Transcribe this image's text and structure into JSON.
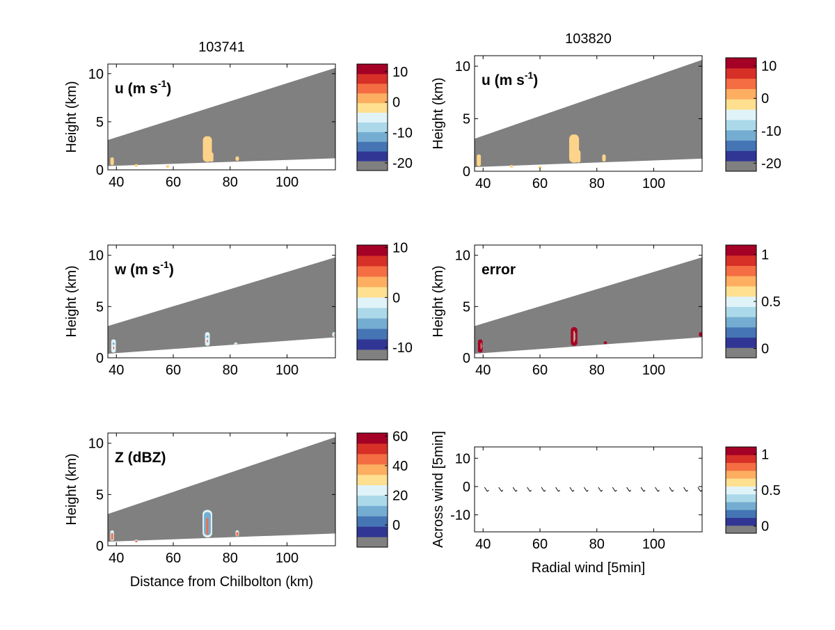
{
  "colorbar_palette": [
    "#808080",
    "#313695",
    "#4575b4",
    "#74add1",
    "#abd9e9",
    "#e0f3f8",
    "#fee090",
    "#fdae61",
    "#f46d43",
    "#d73027",
    "#a50026"
  ],
  "shape_colors": {
    "fill": "#808080",
    "blob": "#fdd389",
    "axes": "#000000",
    "background": "#ffffff"
  },
  "chart_data": [
    {
      "id": "u-103741",
      "type": "heatmap",
      "title": "103741",
      "panel_label": "u (m s",
      "panel_label_sup": "-1",
      "panel_label_end": ")",
      "ylabel": "Height (km)",
      "xlabel": "",
      "xlim": [
        37,
        117
      ],
      "ylim": [
        0,
        11
      ],
      "xticks": [
        "40",
        "60",
        "80",
        "100"
      ],
      "yticks": [
        "0",
        "5",
        "10"
      ],
      "colorbar_ticks": [
        "10",
        "0",
        "-10",
        "-20"
      ],
      "colorbar_tick_values": [
        10,
        0,
        -10,
        -20
      ],
      "colorbar_range": [
        -22.5,
        12.5
      ],
      "beam": {
        "x0": 37,
        "x1": 117,
        "top0": 3.1,
        "top1": 10.6,
        "bot0": 0.4,
        "bot1": 1.2
      },
      "echoes": [
        [
          38.5,
          1.3
        ],
        [
          72,
          3.5
        ],
        [
          73.5,
          1.8
        ],
        [
          82.5,
          1.4
        ],
        [
          47,
          0.6
        ],
        [
          58,
          0.5
        ]
      ]
    },
    {
      "id": "u-103820",
      "type": "heatmap",
      "title": "103820",
      "panel_label": "u (m s",
      "panel_label_sup": "-1",
      "panel_label_end": ")",
      "ylabel": "Height (km)",
      "xlabel": "",
      "xlim": [
        37,
        117
      ],
      "ylim": [
        0,
        11
      ],
      "xticks": [
        "40",
        "60",
        "80",
        "100"
      ],
      "yticks": [
        "0",
        "5",
        "10"
      ],
      "colorbar_ticks": [
        "10",
        "0",
        "-10",
        "-20"
      ],
      "colorbar_tick_values": [
        10,
        0,
        -10,
        -20
      ],
      "colorbar_range": [
        -22.5,
        12.5
      ],
      "beam": {
        "x0": 37,
        "x1": 117,
        "top0": 3.1,
        "top1": 10.6,
        "bot0": 0.4,
        "bot1": 1.2
      },
      "echoes": [
        [
          38.5,
          1.6
        ],
        [
          72,
          3.5
        ],
        [
          73.5,
          2.0
        ],
        [
          82.5,
          1.6
        ],
        [
          50,
          0.6
        ],
        [
          60,
          0.5
        ]
      ]
    },
    {
      "id": "w-103741",
      "type": "heatmap",
      "title": "",
      "panel_label": "w (m s",
      "panel_label_sup": "-1",
      "panel_label_end": ")",
      "ylabel": "Height (km)",
      "xlabel": "",
      "xlim": [
        37,
        117
      ],
      "ylim": [
        0,
        11
      ],
      "xticks": [
        "40",
        "60",
        "80",
        "100"
      ],
      "yticks": [
        "0",
        "5",
        "10"
      ],
      "colorbar_ticks": [
        "10",
        "0",
        "-10"
      ],
      "colorbar_tick_values": [
        10,
        0,
        -10
      ],
      "colorbar_range": [
        -12.5,
        10.5
      ],
      "beam": {
        "x0": 37,
        "x1": 117,
        "top0": 3.1,
        "top1": 9.8,
        "bot0": 0.4,
        "bot1": 2.0
      },
      "echoes": [
        [
          39,
          1.8
        ],
        [
          72,
          2.5
        ],
        [
          82,
          1.5
        ],
        [
          116.5,
          2.5
        ]
      ]
    },
    {
      "id": "error-103820",
      "type": "heatmap",
      "title": "",
      "panel_label": "error",
      "panel_label_sup": "",
      "panel_label_end": "",
      "ylabel": "Height (km)",
      "xlabel": "",
      "xlim": [
        37,
        117
      ],
      "ylim": [
        0,
        11
      ],
      "xticks": [
        "40",
        "60",
        "80",
        "100"
      ],
      "yticks": [
        "0",
        "5",
        "10"
      ],
      "colorbar_ticks": [
        "1",
        "0.5",
        "0"
      ],
      "colorbar_tick_values": [
        1,
        0.5,
        0
      ],
      "colorbar_range": [
        -0.1,
        1.1
      ],
      "beam": {
        "x0": 37,
        "x1": 117,
        "top0": 3.1,
        "top1": 9.8,
        "bot0": 0.4,
        "bot1": 2.0
      },
      "echoes": [
        [
          39,
          1.8
        ],
        [
          72,
          3.0
        ],
        [
          83,
          1.6
        ],
        [
          116.5,
          2.5
        ]
      ]
    },
    {
      "id": "Z-103741",
      "type": "heatmap",
      "title": "",
      "panel_label": "Z (dBZ)",
      "panel_label_sup": "",
      "panel_label_end": "",
      "ylabel": "Height (km)",
      "xlabel": "Distance from Chilbolton (km)",
      "xlim": [
        37,
        117
      ],
      "ylim": [
        0,
        11
      ],
      "xticks": [
        "40",
        "60",
        "80",
        "100"
      ],
      "yticks": [
        "0",
        "5",
        "10"
      ],
      "colorbar_ticks": [
        "60",
        "40",
        "20",
        "0"
      ],
      "colorbar_tick_values": [
        60,
        40,
        20,
        0
      ],
      "colorbar_range": [
        -15,
        62
      ],
      "beam": {
        "x0": 37,
        "x1": 117,
        "top0": 3.1,
        "top1": 10.6,
        "bot0": 0.4,
        "bot1": 1.2
      },
      "echoes": [
        [
          38.5,
          1.5
        ],
        [
          72,
          3.5
        ],
        [
          82.5,
          1.5
        ],
        [
          47,
          0.6
        ]
      ]
    },
    {
      "id": "wind-vectors",
      "type": "scatter",
      "title": "",
      "panel_label": "",
      "panel_label_sup": "",
      "panel_label_end": "",
      "ylabel": "Across wind [5min]",
      "xlabel": "Radial wind [5min]",
      "xlim": [
        37,
        117
      ],
      "ylim": [
        -16,
        14
      ],
      "xticks": [
        "40",
        "60",
        "80",
        "100"
      ],
      "yticks": [
        "10",
        "0",
        "-10"
      ],
      "ytick_values": [
        10,
        0,
        -10
      ],
      "colorbar_ticks": [
        "1",
        "0.5",
        "0"
      ],
      "colorbar_tick_values": [
        1,
        0.5,
        0
      ],
      "colorbar_range": [
        -0.1,
        1.1
      ],
      "arrows_x": [
        41,
        46,
        51,
        56,
        61,
        66,
        71,
        76,
        81,
        86,
        91,
        96,
        101,
        106,
        111,
        116
      ],
      "arrows_y": [
        -1,
        -1,
        -1,
        -1,
        -1,
        -1,
        -1,
        -1,
        -1,
        -1,
        -1,
        -1,
        -1,
        -1,
        -1,
        -1
      ]
    }
  ]
}
